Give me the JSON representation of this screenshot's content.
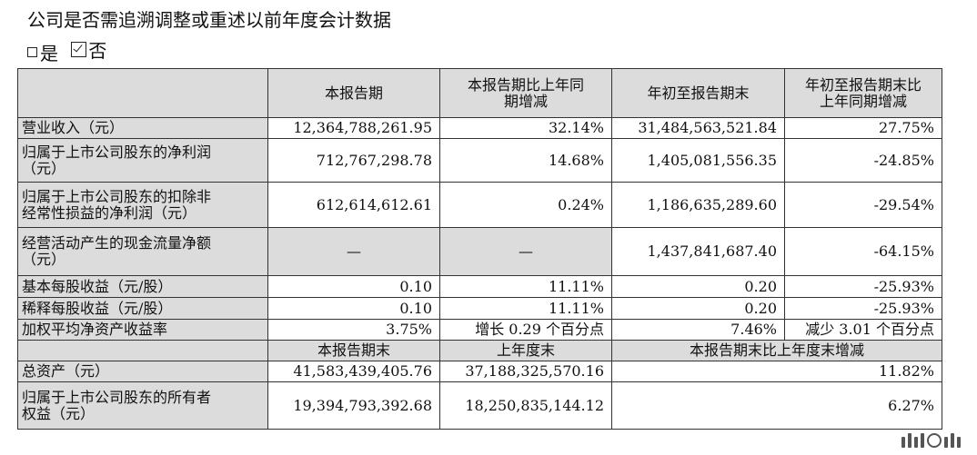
{
  "heading": "公司是否需追溯调整或重述以前年度会计数据",
  "options": {
    "yes": "是",
    "no": "否"
  },
  "header": {
    "c1": "本报告期",
    "c2": "本报告期比上年同期增减",
    "c3": "年初至报告期末",
    "c4": "年初至报告期末比上年同期增减"
  },
  "rows": [
    {
      "label": "营业收入（元）",
      "v1": "12,364,788,261.95",
      "v2": "32.14%",
      "v3": "31,484,563,521.84",
      "v4": "27.75%"
    },
    {
      "label": "归属于上市公司股东的净利润（元）",
      "v1": "712,767,298.78",
      "v2": "14.68%",
      "v3": "1,405,081,556.35",
      "v4": "-24.85%"
    },
    {
      "label": "归属于上市公司股东的扣除非经常性损益的净利润（元）",
      "v1": "612,614,612.61",
      "v2": "0.24%",
      "v3": "1,186,635,289.60",
      "v4": "-29.54%"
    },
    {
      "label": "经营活动产生的现金流量净额（元）",
      "v1": "—",
      "v2": "—",
      "v3": "1,437,841,687.40",
      "v4": "-64.15%"
    },
    {
      "label": "基本每股收益（元/股）",
      "v1": "0.10",
      "v2": "11.11%",
      "v3": "0.20",
      "v4": "-25.93%"
    },
    {
      "label": "稀释每股收益（元/股）",
      "v1": "0.10",
      "v2": "11.11%",
      "v3": "0.20",
      "v4": "-25.93%"
    },
    {
      "label": "加权平均净资产收益率",
      "v1": "3.75%",
      "v2": "增长 0.29 个百分点",
      "v3": "7.46%",
      "v4": "减少 3.01 个百分点"
    }
  ],
  "header2": {
    "c1": "本报告期末",
    "c2": "上年度末",
    "c3": "本报告期末比上年度末增减"
  },
  "rows2": [
    {
      "label": "总资产（元）",
      "v1": "41,583,439,405.76",
      "v2": "37,188,325,570.16",
      "v3": "11.82%"
    },
    {
      "label": "归属于上市公司股东的所有者权益（元）",
      "v1": "19,394,793,392.68",
      "v2": "18,250,835,144.12",
      "v3": "6.27%"
    }
  ]
}
